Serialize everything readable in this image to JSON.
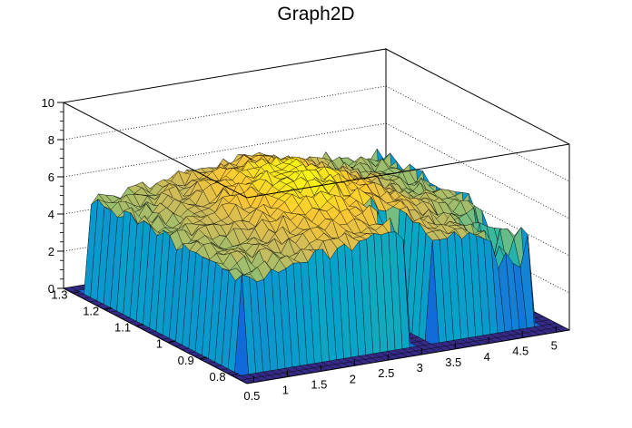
{
  "chart_data": {
    "type": "surface",
    "title": "Graph2D",
    "xlabel": "",
    "ylabel": "",
    "zlabel": "",
    "x_ticks": [
      "0.5",
      "1",
      "1.5",
      "2",
      "2.5",
      "3",
      "3.5",
      "4",
      "4.5",
      "5"
    ],
    "y_ticks": [
      "0.8",
      "0.9",
      "1",
      "1.1",
      "1.2",
      "1.3"
    ],
    "z_ticks": [
      "0",
      "2",
      "4",
      "6",
      "8",
      "10"
    ],
    "xlim": [
      0.4,
      5.2
    ],
    "ylim": [
      0.75,
      1.33
    ],
    "zlim": [
      0,
      10
    ],
    "palette": [
      "#352a87",
      "#0f5cdd",
      "#1481d6",
      "#06a4ca",
      "#2eb7a4",
      "#87bf77",
      "#d1bb59",
      "#fec832",
      "#f9fb0e"
    ],
    "surface_description_values": {
      "plateau_x_range": [
        0.55,
        4.95
      ],
      "plateau_y_range": [
        0.8,
        1.3
      ],
      "plateau_height_typical": 5.5,
      "plateau_height_max": 7.3,
      "gap_x_range": [
        3.05,
        3.35
      ],
      "gap_y_range": [
        0.8,
        0.92
      ]
    }
  }
}
